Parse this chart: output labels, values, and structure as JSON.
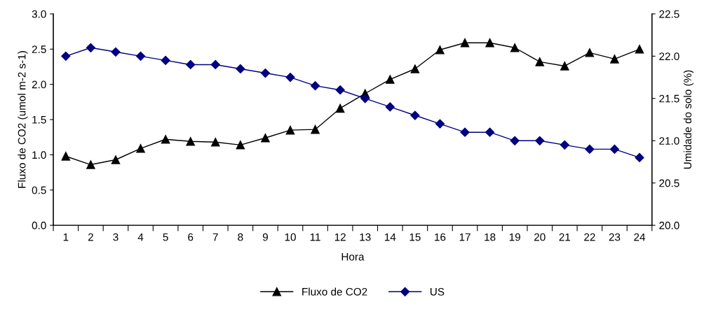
{
  "chart_data": {
    "type": "line",
    "xlabel": "Hora",
    "ylabel": "Fluxo de CO2 (umol m-2 s-1)",
    "y2label": "Umidade do solo (%)",
    "categories": [
      "1",
      "2",
      "3",
      "4",
      "5",
      "6",
      "7",
      "8",
      "9",
      "10",
      "11",
      "12",
      "13",
      "14",
      "15",
      "16",
      "17",
      "18",
      "19",
      "20",
      "21",
      "22",
      "23",
      "24"
    ],
    "series": [
      {
        "name": "Fluxo de CO2",
        "color": "#000000",
        "marker": "triangle",
        "values": [
          0.98,
          0.86,
          0.93,
          1.09,
          1.22,
          1.19,
          1.18,
          1.14,
          1.24,
          1.35,
          1.36,
          1.66,
          1.87,
          2.07,
          2.22,
          2.49,
          2.59,
          2.59,
          2.52,
          2.32,
          2.26,
          2.45,
          2.36,
          2.5
        ]
      },
      {
        "name": "US",
        "color": "#000080",
        "marker": "diamond",
        "axis": "y2",
        "values": [
          22.0,
          22.1,
          22.05,
          22.0,
          21.95,
          21.9,
          21.9,
          21.85,
          21.8,
          21.75,
          21.65,
          21.6,
          21.5,
          21.4,
          21.3,
          21.2,
          21.1,
          21.1,
          21.0,
          21.0,
          20.95,
          20.9,
          20.9,
          20.8
        ]
      }
    ],
    "ylim": [
      0,
      3
    ],
    "yticks": [
      {
        "value": 0,
        "label": "0.0"
      },
      {
        "value": 0.5,
        "label": "0.5"
      },
      {
        "value": 1,
        "label": "1.0"
      },
      {
        "value": 1.5,
        "label": "1.5"
      },
      {
        "value": 2,
        "label": "2.0"
      },
      {
        "value": 2.5,
        "label": "2.5"
      },
      {
        "value": 3,
        "label": "3.0"
      }
    ],
    "y2lim": [
      20,
      22.5
    ],
    "y2ticks": [
      {
        "value": 20,
        "label": "20.0"
      },
      {
        "value": 20.5,
        "label": "20.5"
      },
      {
        "value": 21,
        "label": "21.0"
      },
      {
        "value": 21.5,
        "label": "21.5"
      },
      {
        "value": 22,
        "label": "22.0"
      },
      {
        "value": 22.5,
        "label": "22.5"
      }
    ],
    "grid": false,
    "legend": "bottom"
  }
}
